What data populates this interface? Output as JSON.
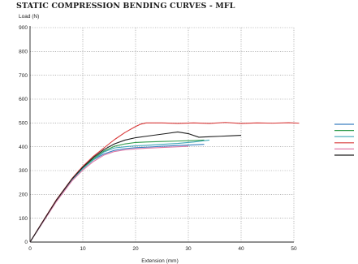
{
  "chart_data": {
    "type": "line",
    "title": "STATIC COMPRESSION BENDING CURVES - MFL",
    "xlabel": "Extension (mm)",
    "ylabel": "Load (N)",
    "xlim": [
      0,
      50
    ],
    "ylim": [
      0,
      900
    ],
    "x_ticks": [
      "0",
      "10",
      "20",
      "30",
      "40",
      "50"
    ],
    "y_ticks": [
      "0",
      "100",
      "200",
      "300",
      "400",
      "500",
      "600",
      "700",
      "800",
      "900"
    ],
    "grid": true,
    "legend_position": "right",
    "series": [
      {
        "color": "#3a7fc0",
        "x": [
          0,
          2,
          5,
          8,
          10,
          12,
          14,
          16,
          18,
          20,
          22,
          25,
          28,
          31,
          33
        ],
        "y": [
          0,
          70,
          175,
          265,
          310,
          345,
          370,
          385,
          392,
          396,
          398,
          402,
          405,
          408,
          410
        ]
      },
      {
        "color": "#2e9a4a",
        "x": [
          0,
          2,
          5,
          8,
          10,
          12,
          14,
          16,
          18,
          20,
          22,
          25,
          28,
          31,
          33
        ],
        "y": [
          0,
          70,
          175,
          265,
          312,
          350,
          382,
          402,
          412,
          418,
          420,
          422,
          424,
          426,
          428
        ]
      },
      {
        "color": "#40a8b8",
        "x": [
          0,
          2,
          5,
          8,
          10,
          12,
          14,
          16,
          18,
          20,
          22,
          25,
          28,
          31,
          34
        ],
        "y": [
          0,
          68,
          172,
          262,
          308,
          345,
          378,
          395,
          400,
          404,
          406,
          410,
          414,
          420,
          428
        ]
      },
      {
        "color": "#d83838",
        "x": [
          0,
          2,
          5,
          8,
          10,
          12,
          14,
          16,
          18,
          20,
          21,
          22,
          25,
          28,
          31,
          34,
          37,
          40,
          43,
          46,
          49,
          51
        ],
        "y": [
          0,
          72,
          178,
          268,
          318,
          360,
          395,
          430,
          460,
          485,
          495,
          500,
          500,
          498,
          500,
          498,
          502,
          498,
          500,
          499,
          501,
          499
        ]
      },
      {
        "color": "#e07aa8",
        "x": [
          0,
          2,
          5,
          8,
          10,
          12,
          14,
          16,
          18,
          20,
          22,
          25,
          28,
          30
        ],
        "y": [
          0,
          68,
          170,
          258,
          302,
          338,
          365,
          380,
          387,
          391,
          394,
          397,
          400,
          402
        ]
      },
      {
        "color": "#1e1e1e",
        "x": [
          0,
          2,
          5,
          8,
          10,
          12,
          14,
          16,
          18,
          20,
          22,
          24,
          26,
          28,
          30,
          32,
          34,
          36,
          38,
          40
        ],
        "y": [
          0,
          71,
          176,
          266,
          314,
          355,
          388,
          412,
          428,
          438,
          444,
          450,
          456,
          462,
          455,
          440,
          442,
          444,
          446,
          448
        ]
      }
    ]
  }
}
